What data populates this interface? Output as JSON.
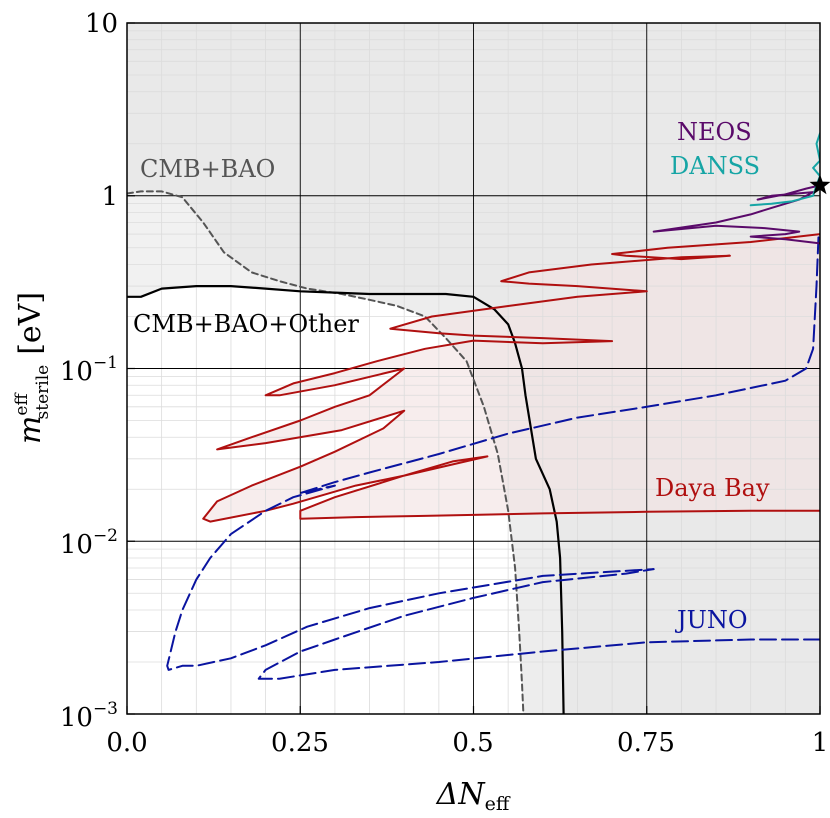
{
  "chart_data": {
    "type": "line",
    "title": "",
    "xlabel": "ΔN",
    "xlabel_sub": "eff",
    "ylabel": "m",
    "ylabel_sup": "eff",
    "ylabel_sub": "sterile",
    "ylabel_unit": "[eV]",
    "xscale": "linear",
    "yscale": "log",
    "xlim": [
      0,
      1
    ],
    "ylim": [
      0.001,
      10
    ],
    "grid": true,
    "x_ticks": [
      {
        "value": 0,
        "label": "0.0"
      },
      {
        "value": 0.25,
        "label": "0.25"
      },
      {
        "value": 0.5,
        "label": "0.5"
      },
      {
        "value": 0.75,
        "label": "0.75"
      },
      {
        "value": 1,
        "label": "1"
      }
    ],
    "y_ticks": [
      {
        "value": 10,
        "label": "10"
      },
      {
        "value": 1,
        "label": "1"
      },
      {
        "value": 0.1,
        "label": "10",
        "exp": "−1"
      },
      {
        "value": 0.01,
        "label": "10",
        "exp": "−2"
      },
      {
        "value": 0.001,
        "label": "10",
        "exp": "−3"
      }
    ],
    "colors": {
      "excluded_fill": "#e6e6e6",
      "grid_major": "#000000",
      "grid_minor": "#dcdcdc",
      "cmb_bao": "#555555",
      "cmb_other": "#000000",
      "daya_bay": "#b01010",
      "daya_bay_fill": "#f3e4e3",
      "juno": "#0a14a0",
      "neos": "#5a0a6a",
      "danss": "#16a5a5",
      "best_fit": "#000000"
    },
    "series": [
      {
        "name": "CMB+BAO",
        "style": "dashed",
        "points": [
          [
            0,
            1.03
          ],
          [
            0.02,
            1.06
          ],
          [
            0.05,
            1.06
          ],
          [
            0.08,
            0.98
          ],
          [
            0.11,
            0.7
          ],
          [
            0.14,
            0.47
          ],
          [
            0.18,
            0.36
          ],
          [
            0.22,
            0.32
          ],
          [
            0.26,
            0.29
          ],
          [
            0.31,
            0.27
          ],
          [
            0.35,
            0.25
          ],
          [
            0.39,
            0.23
          ],
          [
            0.43,
            0.2
          ],
          [
            0.46,
            0.15
          ],
          [
            0.49,
            0.11
          ],
          [
            0.515,
            0.06
          ],
          [
            0.535,
            0.032
          ],
          [
            0.55,
            0.015
          ],
          [
            0.56,
            0.007
          ],
          [
            0.566,
            0.003
          ],
          [
            0.57,
            0.0015
          ],
          [
            0.572,
            0.001
          ]
        ]
      },
      {
        "name": "CMB+BAO+Other",
        "style": "solid",
        "points": [
          [
            0,
            0.26
          ],
          [
            0.02,
            0.26
          ],
          [
            0.05,
            0.29
          ],
          [
            0.1,
            0.3
          ],
          [
            0.15,
            0.3
          ],
          [
            0.2,
            0.29
          ],
          [
            0.25,
            0.28
          ],
          [
            0.3,
            0.275
          ],
          [
            0.35,
            0.27
          ],
          [
            0.4,
            0.27
          ],
          [
            0.46,
            0.27
          ],
          [
            0.5,
            0.26
          ],
          [
            0.53,
            0.22
          ],
          [
            0.55,
            0.18
          ],
          [
            0.56,
            0.14
          ],
          [
            0.57,
            0.1
          ],
          [
            0.575,
            0.07
          ],
          [
            0.59,
            0.03
          ],
          [
            0.61,
            0.02
          ],
          [
            0.62,
            0.013
          ],
          [
            0.625,
            0.008
          ],
          [
            0.628,
            0.003
          ],
          [
            0.63,
            0.001
          ]
        ]
      },
      {
        "name": "Daya Bay",
        "style": "solid",
        "points": [
          [
            1,
            0.015
          ],
          [
            0.9,
            0.015
          ],
          [
            0.75,
            0.0148
          ],
          [
            0.6,
            0.0145
          ],
          [
            0.5,
            0.0142
          ],
          [
            0.42,
            0.014
          ],
          [
            0.33,
            0.0138
          ],
          [
            0.25,
            0.0135
          ],
          [
            0.25,
            0.015
          ],
          [
            0.3,
            0.018
          ],
          [
            0.4,
            0.024
          ],
          [
            0.47,
            0.029
          ],
          [
            0.52,
            0.031
          ],
          [
            0.4,
            0.024
          ],
          [
            0.33,
            0.021
          ],
          [
            0.24,
            0.0165
          ],
          [
            0.2,
            0.015
          ],
          [
            0.12,
            0.013
          ],
          [
            0.11,
            0.0135
          ],
          [
            0.13,
            0.017
          ],
          [
            0.18,
            0.021
          ],
          [
            0.25,
            0.027
          ],
          [
            0.3,
            0.033
          ],
          [
            0.37,
            0.045
          ],
          [
            0.4,
            0.057
          ],
          [
            0.31,
            0.044
          ],
          [
            0.2,
            0.037
          ],
          [
            0.13,
            0.034
          ],
          [
            0.18,
            0.04
          ],
          [
            0.25,
            0.05
          ],
          [
            0.3,
            0.06
          ],
          [
            0.35,
            0.07
          ],
          [
            0.4,
            0.1
          ],
          [
            0.3,
            0.08
          ],
          [
            0.22,
            0.07
          ],
          [
            0.2,
            0.07
          ],
          [
            0.24,
            0.082
          ],
          [
            0.3,
            0.094
          ],
          [
            0.36,
            0.11
          ],
          [
            0.43,
            0.13
          ],
          [
            0.5,
            0.145
          ],
          [
            0.6,
            0.14
          ],
          [
            0.7,
            0.144
          ],
          [
            0.6,
            0.15
          ],
          [
            0.5,
            0.155
          ],
          [
            0.45,
            0.16
          ],
          [
            0.38,
            0.17
          ],
          [
            0.44,
            0.2
          ],
          [
            0.55,
            0.23
          ],
          [
            0.65,
            0.26
          ],
          [
            0.75,
            0.28
          ],
          [
            0.65,
            0.3
          ],
          [
            0.58,
            0.31
          ],
          [
            0.54,
            0.32
          ],
          [
            0.58,
            0.36
          ],
          [
            0.67,
            0.4
          ],
          [
            0.8,
            0.44
          ],
          [
            0.87,
            0.45
          ],
          [
            0.8,
            0.43
          ],
          [
            0.72,
            0.45
          ],
          [
            0.7,
            0.46
          ],
          [
            0.78,
            0.5
          ],
          [
            0.9,
            0.54
          ],
          [
            1,
            0.6
          ]
        ]
      },
      {
        "name": "JUNO",
        "style": "longdash",
        "points": [
          [
            1,
            0.0027
          ],
          [
            0.9,
            0.0027
          ],
          [
            0.75,
            0.0026
          ],
          [
            0.6,
            0.0023
          ],
          [
            0.45,
            0.002
          ],
          [
            0.3,
            0.0018
          ],
          [
            0.22,
            0.0016
          ],
          [
            0.19,
            0.0016
          ],
          [
            0.2,
            0.0018
          ],
          [
            0.25,
            0.0023
          ],
          [
            0.3,
            0.0027
          ],
          [
            0.4,
            0.0037
          ],
          [
            0.5,
            0.0047
          ],
          [
            0.6,
            0.0058
          ],
          [
            0.72,
            0.0065
          ],
          [
            0.76,
            0.0069
          ],
          [
            0.6,
            0.0063
          ],
          [
            0.45,
            0.005
          ],
          [
            0.35,
            0.0041
          ],
          [
            0.26,
            0.0032
          ],
          [
            0.2,
            0.0025
          ],
          [
            0.15,
            0.0021
          ],
          [
            0.1,
            0.0019
          ],
          [
            0.08,
            0.0019
          ],
          [
            0.06,
            0.0018
          ],
          [
            0.058,
            0.0019
          ],
          [
            0.07,
            0.003
          ],
          [
            0.08,
            0.004
          ],
          [
            0.1,
            0.006
          ],
          [
            0.12,
            0.008
          ],
          [
            0.15,
            0.011
          ],
          [
            0.2,
            0.015
          ],
          [
            0.24,
            0.018
          ],
          [
            0.3,
            0.021
          ],
          [
            0.25,
            0.019
          ],
          [
            0.3,
            0.022
          ],
          [
            0.35,
            0.025
          ],
          [
            0.45,
            0.032
          ],
          [
            0.55,
            0.042
          ],
          [
            0.65,
            0.052
          ],
          [
            0.75,
            0.06
          ],
          [
            0.85,
            0.07
          ],
          [
            0.95,
            0.085
          ],
          [
            0.98,
            0.1
          ],
          [
            0.99,
            0.13
          ],
          [
            0.995,
            0.3
          ],
          [
            0.998,
            0.6
          ]
        ]
      },
      {
        "name": "NEOS",
        "style": "solid",
        "points": [
          [
            1,
            0.53
          ],
          [
            0.95,
            0.56
          ],
          [
            0.9,
            0.58
          ],
          [
            0.95,
            0.6
          ],
          [
            0.97,
            0.62
          ],
          [
            0.92,
            0.65
          ],
          [
            0.85,
            0.67
          ],
          [
            0.76,
            0.62
          ],
          [
            0.85,
            0.7
          ],
          [
            0.9,
            0.78
          ],
          [
            0.93,
            0.85
          ],
          [
            0.97,
            0.95
          ],
          [
            0.99,
            1.05
          ],
          [
            0.93,
            1.0
          ],
          [
            0.91,
            0.95
          ],
          [
            0.95,
            1.02
          ],
          [
            0.98,
            1.1
          ],
          [
            1,
            1.15
          ]
        ]
      },
      {
        "name": "DANSS",
        "style": "solid",
        "points": [
          [
            0.9,
            0.88
          ],
          [
            0.93,
            0.9
          ],
          [
            0.96,
            0.93
          ],
          [
            0.99,
            1.0
          ],
          [
            0.995,
            1.15
          ],
          [
            1,
            1.3
          ],
          [
            0.99,
            1.45
          ],
          [
            1,
            1.6
          ],
          [
            0.995,
            2.0
          ],
          [
            1,
            2.3
          ]
        ]
      }
    ],
    "best_fit": {
      "x": 1,
      "y": 1.15
    },
    "annotations": [
      {
        "name": "cmb-bao",
        "text": "CMB+BAO",
        "color": "#555555"
      },
      {
        "name": "cmb-bao-other",
        "text": "CMB+BAO+Other",
        "color": "#000000"
      },
      {
        "name": "daya-bay",
        "text": "Daya Bay",
        "color": "#b01010"
      },
      {
        "name": "juno",
        "text": "JUNO",
        "color": "#0a14a0"
      },
      {
        "name": "neos",
        "text": "NEOS",
        "color": "#5a0a6a"
      },
      {
        "name": "danss",
        "text": "DANSS",
        "color": "#16a5a5"
      }
    ]
  }
}
